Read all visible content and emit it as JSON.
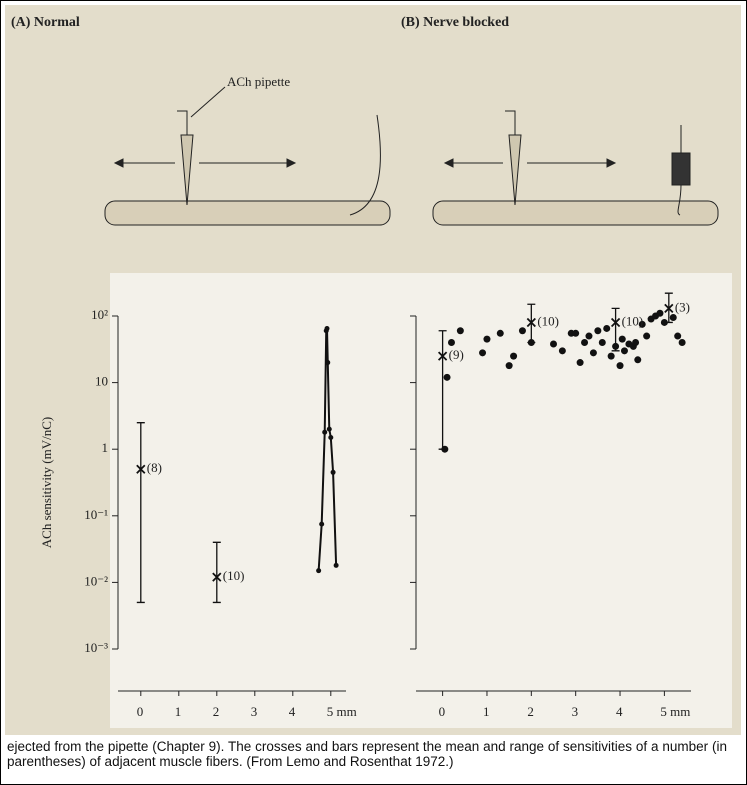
{
  "chart_data": [
    {
      "type": "scatter",
      "title": "(A) Normal",
      "annotation": "ACh pipette",
      "ylabel": "ACh sensitivity (mV/nC)",
      "log_y": true,
      "color": "#111111",
      "xlim": [
        -0.6,
        5.4
      ],
      "xticks": [
        0,
        1,
        2,
        3,
        4,
        {
          "value": 5,
          "label": "5 mm"
        }
      ],
      "ylim": [
        0.001,
        100
      ],
      "yticks": [
        {
          "value": 100,
          "label": "10²"
        },
        10,
        1,
        {
          "value": 0.1,
          "label": "10⁻¹"
        },
        {
          "value": 0.01,
          "label": "10⁻²"
        },
        {
          "value": 0.001,
          "label": "10⁻³"
        }
      ],
      "show_ytick_labels": true,
      "error_bars": [
        {
          "x": 0,
          "mean": 0.5,
          "low": 0.005,
          "high": 2.5,
          "label": "(8)"
        },
        {
          "x": 2,
          "mean": 0.012,
          "low": 0.005,
          "high": 0.04,
          "label": "(10)"
        }
      ],
      "series": [
        {
          "connect": true,
          "x": [
            4.68,
            4.76,
            4.84,
            4.88,
            4.9,
            4.92,
            4.96,
            5.0,
            5.06,
            5.14
          ],
          "values": [
            0.015,
            0.075,
            1.8,
            60,
            65,
            20,
            2,
            1.5,
            0.45,
            0.018
          ]
        }
      ]
    },
    {
      "type": "scatter",
      "title": "(B) Nerve blocked",
      "log_y": true,
      "color": "#111111",
      "xlim": [
        -0.6,
        5.6
      ],
      "xticks": [
        0,
        1,
        2,
        3,
        4,
        {
          "value": 5,
          "label": "5 mm"
        }
      ],
      "ylim": [
        0.001,
        100
      ],
      "yticks": [
        100,
        10,
        1,
        0.1,
        0.01,
        0.001
      ],
      "show_ytick_labels": false,
      "error_bars": [
        {
          "x": 0,
          "mean": 25,
          "low": 1,
          "high": 60,
          "label": "(9)"
        },
        {
          "x": 2,
          "mean": 80,
          "low": 40,
          "high": 150,
          "label": "(10)"
        },
        {
          "x": 3.9,
          "mean": 80,
          "low": 30,
          "high": 130,
          "label": "(10)"
        },
        {
          "x": 5.1,
          "mean": 130,
          "low": 80,
          "high": 220,
          "label": "(3)"
        }
      ],
      "series": [
        {
          "connect": false,
          "x": [
            0.05,
            0.1,
            0.2,
            0.4,
            0.9,
            1.0,
            1.3,
            1.5,
            1.6,
            1.8,
            2.0,
            2.5,
            2.7,
            2.9,
            3.0,
            3.1,
            3.2,
            3.3,
            3.4,
            3.5,
            3.6,
            3.7,
            3.8,
            3.9,
            4.0,
            4.05,
            4.1,
            4.2,
            4.3,
            4.35,
            4.4,
            4.5,
            4.6,
            4.7,
            4.8,
            4.9,
            5.0,
            5.2,
            5.3,
            5.4
          ],
          "values": [
            1,
            12,
            40,
            60,
            28,
            45,
            55,
            18,
            25,
            60,
            40,
            38,
            30,
            55,
            55,
            20,
            40,
            50,
            28,
            60,
            40,
            65,
            25,
            35,
            18,
            45,
            30,
            38,
            35,
            40,
            22,
            75,
            50,
            90,
            100,
            110,
            80,
            95,
            50,
            40
          ]
        }
      ]
    }
  ],
  "caption": "ejected from the pipette (Chapter 9). The crosses and bars represent the mean and range of sensitivities of a number (in parentheses) of adjacent muscle fibers. (From Lemo and Rosenthat 1972.)"
}
